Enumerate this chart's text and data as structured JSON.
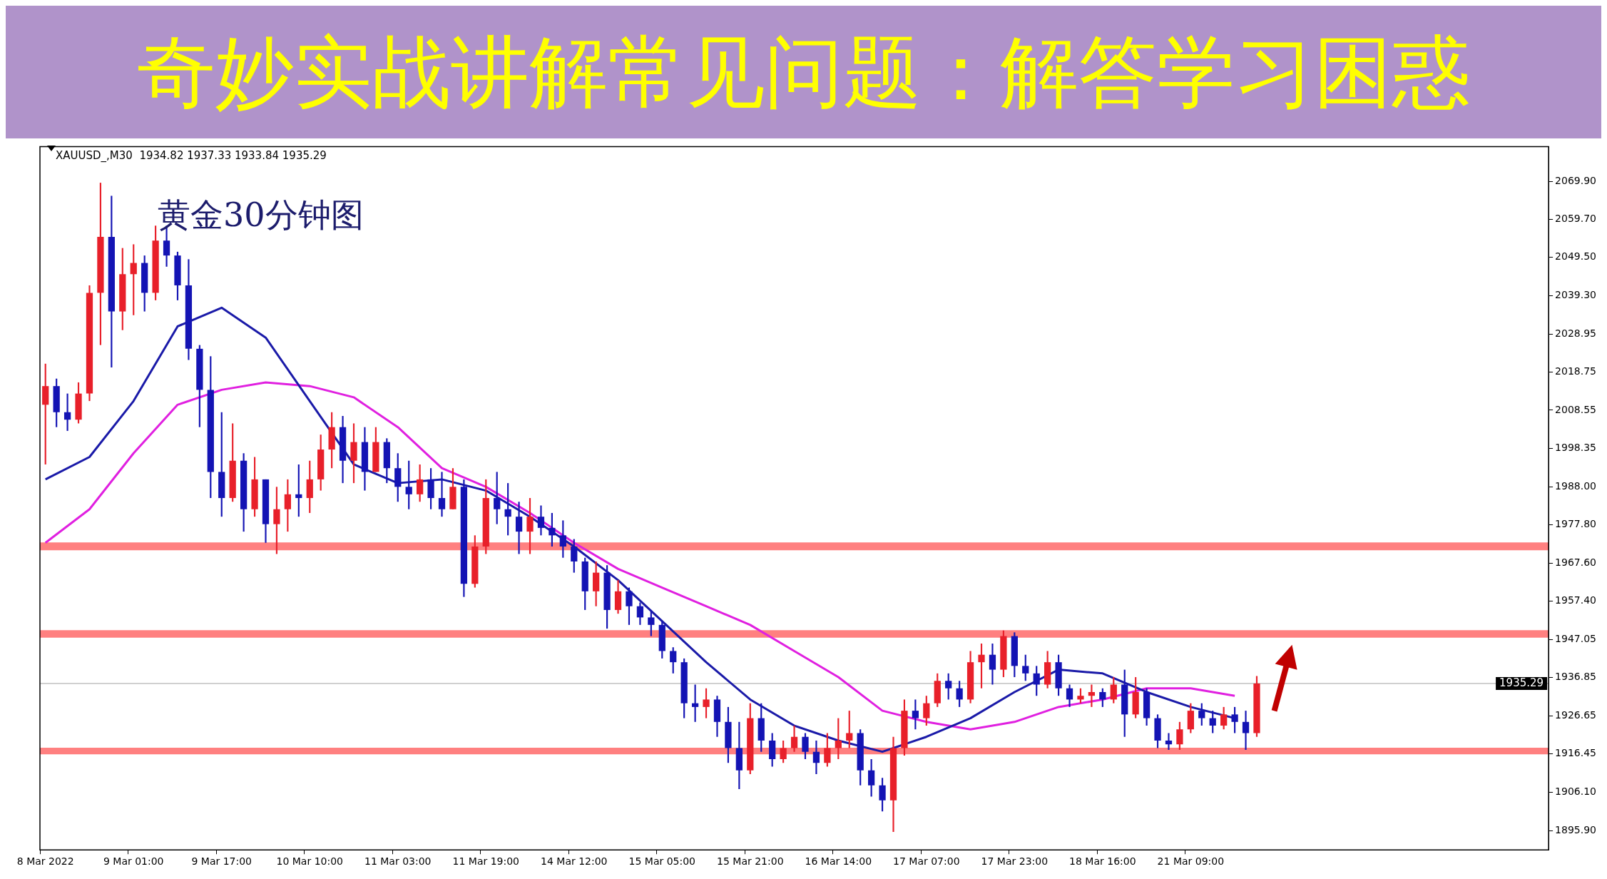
{
  "chart_data": {
    "type": "candlestick",
    "title": "黄金30分钟图",
    "subtitle": "奇妙实战讲解常见问题：解答学习困惑",
    "annotations": [
      "XAUUSD_,M30  1934.82 1937.33 1933.84 1935.29"
    ],
    "categories": [
      "8 Mar 2022",
      null,
      null,
      null,
      null,
      null,
      null,
      null,
      "9 Mar 01:00",
      null,
      null,
      null,
      null,
      null,
      null,
      null,
      "9 Mar 17:00",
      null,
      null,
      null,
      null,
      null,
      null,
      null,
      "10 Mar 10:00",
      null,
      null,
      null,
      null,
      null,
      null,
      null,
      "11 Mar 03:00",
      null,
      null,
      null,
      null,
      null,
      null,
      null,
      "11 Mar 19:00",
      null,
      null,
      null,
      null,
      null,
      null,
      null,
      "14 Mar 12:00",
      null,
      null,
      null,
      null,
      null,
      null,
      null,
      "15 Mar 05:00",
      null,
      null,
      null,
      null,
      null,
      null,
      null,
      "15 Mar 21:00",
      null,
      null,
      null,
      null,
      null,
      null,
      null,
      "16 Mar 14:00",
      null,
      null,
      null,
      null,
      null,
      null,
      null,
      "17 Mar 07:00",
      null,
      null,
      null,
      null,
      null,
      null,
      null,
      "17 Mar 23:00",
      null,
      null,
      null,
      null,
      null,
      null,
      null,
      "18 Mar 16:00",
      null,
      null,
      null,
      null,
      null,
      null,
      null,
      "21 Mar 09:00",
      null,
      null,
      null,
      null,
      null,
      null,
      null,
      null,
      null,
      null,
      null,
      null,
      null,
      null,
      null,
      null,
      null,
      null,
      null,
      null,
      null,
      null,
      null,
      null,
      null,
      null,
      null,
      null,
      null,
      null,
      null,
      null
    ],
    "ohlc": [
      [
        2010,
        2021,
        1994,
        2015
      ],
      [
        2015,
        2017,
        2004,
        2008
      ],
      [
        2008,
        2013,
        2003,
        2006
      ],
      [
        2006,
        2016,
        2005,
        2013
      ],
      [
        2013,
        2042,
        2011,
        2040
      ],
      [
        2040,
        2069.5,
        2026,
        2055
      ],
      [
        2055,
        2066,
        2020,
        2035
      ],
      [
        2035,
        2052,
        2030,
        2045
      ],
      [
        2045,
        2053,
        2034,
        2048
      ],
      [
        2048,
        2050,
        2035,
        2040
      ],
      [
        2040,
        2058,
        2038,
        2054
      ],
      [
        2054,
        2058,
        2047,
        2050
      ],
      [
        2050,
        2051,
        2038,
        2042
      ],
      [
        2042,
        2049,
        2022,
        2025
      ],
      [
        2025,
        2026,
        2004,
        2014
      ],
      [
        2014,
        2023,
        1985,
        1992
      ],
      [
        1992,
        2008,
        1980,
        1985
      ],
      [
        1985,
        2005,
        1984,
        1995
      ],
      [
        1995,
        1997,
        1976,
        1982
      ],
      [
        1982,
        1996,
        1980,
        1990
      ],
      [
        1990,
        1990,
        1973,
        1978
      ],
      [
        1978,
        1988,
        1970,
        1982
      ],
      [
        1982,
        1990,
        1976,
        1986
      ],
      [
        1986,
        1994,
        1980,
        1985
      ],
      [
        1985,
        1995,
        1981,
        1990
      ],
      [
        1990,
        2002,
        1987,
        1998
      ],
      [
        1998,
        2008,
        1993,
        2004
      ],
      [
        2004,
        2007,
        1989,
        1995
      ],
      [
        1995,
        2005,
        1989,
        2000
      ],
      [
        2000,
        2004,
        1987,
        1992
      ],
      [
        1992,
        2004,
        1992,
        2000
      ],
      [
        2000,
        2001,
        1989,
        1993
      ],
      [
        1993,
        1997,
        1984,
        1988
      ],
      [
        1988,
        1995,
        1982,
        1986
      ],
      [
        1986,
        1994,
        1984,
        1990
      ],
      [
        1990,
        1993,
        1982,
        1985
      ],
      [
        1985,
        1992,
        1980,
        1982
      ],
      [
        1982,
        1993,
        1982,
        1988
      ],
      [
        1988,
        1990,
        1958.5,
        1962
      ],
      [
        1962,
        1975,
        1961,
        1972
      ],
      [
        1972,
        1990,
        1970,
        1985
      ],
      [
        1985,
        1992,
        1978,
        1982
      ],
      [
        1982,
        1989,
        1975,
        1980
      ],
      [
        1980,
        1984,
        1970,
        1976
      ],
      [
        1976,
        1985,
        1970,
        1980
      ],
      [
        1980,
        1983,
        1975,
        1977
      ],
      [
        1977,
        1981,
        1972,
        1975
      ],
      [
        1975,
        1979,
        1969,
        1972
      ],
      [
        1972,
        1974,
        1965,
        1968
      ],
      [
        1968,
        1969,
        1955,
        1960
      ],
      [
        1960,
        1968,
        1956,
        1965
      ],
      [
        1965,
        1967,
        1950,
        1955
      ],
      [
        1955,
        1963,
        1954,
        1960
      ],
      [
        1960,
        1961,
        1951,
        1956
      ],
      [
        1956,
        1957,
        1951,
        1953
      ],
      [
        1953,
        1955,
        1948,
        1951
      ],
      [
        1951,
        1952,
        1942,
        1944
      ],
      [
        1944,
        1945,
        1938,
        1941
      ],
      [
        1941,
        1942,
        1926,
        1930
      ],
      [
        1930,
        1935,
        1925,
        1929
      ],
      [
        1929,
        1934,
        1926,
        1931
      ],
      [
        1931,
        1932,
        1921,
        1925
      ],
      [
        1925,
        1929,
        1914,
        1918
      ],
      [
        1918,
        1925,
        1907,
        1912
      ],
      [
        1912,
        1930,
        1911,
        1926
      ],
      [
        1926,
        1930,
        1917,
        1920
      ],
      [
        1920,
        1922,
        1913,
        1915
      ],
      [
        1915,
        1920,
        1914,
        1918
      ],
      [
        1918,
        1924,
        1917,
        1921
      ],
      [
        1921,
        1922,
        1915,
        1917
      ],
      [
        1917,
        1920,
        1911,
        1914
      ],
      [
        1914,
        1922,
        1913,
        1918
      ],
      [
        1918,
        1926,
        1915,
        1920
      ],
      [
        1920,
        1928,
        1918,
        1922
      ],
      [
        1922,
        1923,
        1908,
        1912
      ],
      [
        1912,
        1915,
        1905,
        1908
      ],
      [
        1908,
        1910,
        1901,
        1904
      ],
      [
        1904,
        1921,
        1895.5,
        1918
      ],
      [
        1918,
        1931,
        1916,
        1928
      ],
      [
        1928,
        1931,
        1923,
        1926
      ],
      [
        1926,
        1932,
        1924,
        1930
      ],
      [
        1930,
        1938,
        1929,
        1936
      ],
      [
        1936,
        1938,
        1931,
        1934
      ],
      [
        1934,
        1936,
        1929,
        1931
      ],
      [
        1931,
        1944,
        1930,
        1941
      ],
      [
        1941,
        1946,
        1934,
        1943
      ],
      [
        1943,
        1946,
        1935,
        1939
      ],
      [
        1939,
        1949.5,
        1937,
        1948
      ],
      [
        1948,
        1949,
        1937,
        1940
      ],
      [
        1940,
        1943,
        1936,
        1938
      ],
      [
        1938,
        1940,
        1932,
        1935
      ],
      [
        1935,
        1944,
        1934,
        1941
      ],
      [
        1941,
        1943,
        1932,
        1934
      ],
      [
        1934,
        1935,
        1929,
        1931
      ],
      [
        1931,
        1934,
        1930,
        1932
      ],
      [
        1932,
        1935,
        1929,
        1933
      ],
      [
        1933,
        1934,
        1929,
        1931
      ],
      [
        1931,
        1937,
        1930,
        1935
      ],
      [
        1935,
        1939,
        1921,
        1927
      ],
      [
        1927,
        1937,
        1926,
        1933
      ],
      [
        1933,
        1934,
        1924,
        1926
      ],
      [
        1926,
        1927,
        1918,
        1920
      ],
      [
        1920,
        1922,
        1917.5,
        1919
      ],
      [
        1919,
        1925,
        1917.5,
        1923
      ],
      [
        1923,
        1930,
        1922,
        1928
      ],
      [
        1928,
        1930,
        1924,
        1926
      ],
      [
        1926,
        1928,
        1922,
        1924
      ],
      [
        1924,
        1929,
        1923,
        1927
      ],
      [
        1927,
        1929,
        1922,
        1925
      ],
      [
        1925,
        1928,
        1917.5,
        1922
      ],
      [
        1922,
        1937.3,
        1921,
        1935.3
      ],
      null,
      null,
      null,
      null,
      null,
      null,
      null,
      null,
      null,
      null,
      null,
      null,
      null,
      null,
      null,
      null,
      null,
      null,
      null,
      null,
      null,
      null,
      null,
      null,
      null,
      null
    ],
    "colors": [
      "#e8202a",
      "#1414b4",
      "#1414b4",
      "#e8202a",
      "#e8202a",
      "#e8202a",
      "#1414b4",
      "#e8202a",
      "#e8202a",
      "#1414b4",
      "#e8202a",
      "#1414b4",
      "#1414b4",
      "#1414b4",
      "#1414b4",
      "#1414b4",
      "#1414b4",
      "#e8202a",
      "#1414b4",
      "#e8202a",
      "#1414b4",
      "#e8202a",
      "#e8202a",
      "#1414b4",
      "#e8202a",
      "#e8202a",
      "#e8202a",
      "#1414b4",
      "#e8202a",
      "#1414b4",
      "#e8202a",
      "#1414b4",
      "#1414b4",
      "#1414b4",
      "#e8202a",
      "#1414b4",
      "#1414b4",
      "#e8202a",
      "#1414b4",
      "#e8202a",
      "#e8202a",
      "#1414b4",
      "#1414b4",
      "#1414b4",
      "#e8202a",
      "#1414b4",
      "#1414b4",
      "#1414b4",
      "#1414b4",
      "#1414b4",
      "#e8202a",
      "#1414b4",
      "#e8202a",
      "#1414b4",
      "#1414b4",
      "#1414b4",
      "#1414b4",
      "#1414b4",
      "#1414b4",
      "#1414b4",
      "#e8202a",
      "#1414b4",
      "#1414b4",
      "#1414b4",
      "#e8202a",
      "#1414b4",
      "#1414b4",
      "#e8202a",
      "#e8202a",
      "#1414b4",
      "#1414b4",
      "#e8202a",
      "#e8202a",
      "#e8202a",
      "#1414b4",
      "#1414b4",
      "#1414b4",
      "#e8202a",
      "#e8202a",
      "#1414b4",
      "#e8202a",
      "#e8202a",
      "#1414b4",
      "#1414b4",
      "#e8202a",
      "#e8202a",
      "#1414b4",
      "#e8202a",
      "#1414b4",
      "#1414b4",
      "#1414b4",
      "#e8202a",
      "#1414b4",
      "#1414b4",
      "#e8202a",
      "#e8202a",
      "#1414b4",
      "#e8202a",
      "#1414b4",
      "#e8202a",
      "#1414b4",
      "#1414b4",
      "#1414b4",
      "#e8202a",
      "#e8202a",
      "#1414b4",
      "#1414b4",
      "#e8202a",
      "#1414b4",
      "#1414b4",
      "#e8202a",
      null,
      null,
      null,
      null,
      null,
      null,
      null,
      null,
      null,
      null,
      null,
      null,
      null,
      null,
      null,
      null,
      null,
      null,
      null,
      null,
      null,
      null,
      null,
      null,
      null,
      null
    ],
    "series": [
      {
        "type": "line",
        "color": "#1a1aa8",
        "values": [
          1990,
          null,
          null,
          null,
          1996,
          null,
          null,
          null,
          2011,
          null,
          null,
          null,
          2031,
          null,
          null,
          null,
          2036,
          null,
          null,
          null,
          2028,
          null,
          null,
          null,
          2011,
          null,
          null,
          null,
          1994,
          null,
          null,
          null,
          1989,
          null,
          null,
          null,
          1990,
          null,
          null,
          null,
          1987,
          null,
          null,
          null,
          1980,
          null,
          null,
          null,
          1972,
          null,
          null,
          null,
          1963,
          null,
          null,
          null,
          1952,
          null,
          null,
          null,
          1941,
          null,
          null,
          null,
          1931,
          null,
          null,
          null,
          1924,
          null,
          null,
          null,
          1920,
          null,
          null,
          null,
          1917,
          null,
          null,
          null,
          1921,
          null,
          null,
          null,
          1926,
          null,
          null,
          null,
          1933,
          null,
          null,
          null,
          1939,
          null,
          null,
          null,
          1938,
          null,
          null,
          null,
          1933,
          null,
          null,
          null,
          1929,
          null,
          null,
          null,
          1926,
          null,
          null,
          null,
          null,
          null,
          null,
          null,
          null,
          null,
          null,
          null,
          null,
          null,
          null,
          null,
          null,
          null,
          null,
          null,
          null,
          null,
          null,
          null,
          null,
          null,
          null,
          null,
          null
        ]
      },
      {
        "type": "line",
        "color": "#e020e0",
        "values": [
          1973,
          null,
          null,
          null,
          1982,
          null,
          null,
          null,
          1997,
          null,
          null,
          null,
          2010,
          null,
          null,
          null,
          2014,
          null,
          null,
          null,
          2016,
          null,
          null,
          null,
          2015,
          null,
          null,
          null,
          2012,
          null,
          null,
          null,
          2004,
          null,
          null,
          null,
          1993,
          null,
          null,
          null,
          1988,
          null,
          null,
          null,
          1981,
          null,
          null,
          null,
          1973,
          null,
          null,
          null,
          1966,
          null,
          null,
          null,
          1961,
          null,
          null,
          null,
          1956,
          null,
          null,
          null,
          1951,
          null,
          null,
          null,
          1944,
          null,
          null,
          null,
          1937,
          null,
          null,
          null,
          1928,
          null,
          null,
          null,
          1925,
          null,
          null,
          null,
          1923,
          null,
          null,
          null,
          1925,
          null,
          null,
          null,
          1929,
          null,
          null,
          null,
          1931,
          null,
          null,
          null,
          1934,
          null,
          null,
          null,
          1934,
          null,
          null,
          null,
          1932,
          null,
          null,
          null,
          null,
          null,
          null,
          null,
          null,
          null,
          null,
          null,
          null,
          null,
          null,
          null,
          null,
          null,
          null,
          null,
          null,
          null,
          null,
          null,
          null,
          null,
          null,
          null,
          null
        ]
      }
    ],
    "ylim": [
      1890.7,
      2079.2
    ],
    "yticks": [
      {
        "value": 1895.9,
        "label": "1895.90"
      },
      {
        "value": 1906.1,
        "label": "1906.10"
      },
      {
        "value": 1916.45,
        "label": "1916.45"
      },
      {
        "value": 1926.65,
        "label": "1926.65"
      },
      {
        "value": 1936.85,
        "label": "1936.85"
      },
      {
        "value": 1947.05,
        "label": "1947.05"
      },
      {
        "value": 1957.4,
        "label": "1957.40"
      },
      {
        "value": 1967.6,
        "label": "1967.60"
      },
      {
        "value": 1977.8,
        "label": "1977.80"
      },
      {
        "value": 1988,
        "label": "1988.00"
      },
      {
        "value": 1998.35,
        "label": "1998.35"
      },
      {
        "value": 2008.55,
        "label": "2008.55"
      },
      {
        "value": 2018.75,
        "label": "2018.75"
      },
      {
        "value": 2028.95,
        "label": "2028.95"
      },
      {
        "value": 2039.3,
        "label": "2039.30"
      },
      {
        "value": 2049.5,
        "label": "2049.50"
      },
      {
        "value": 2059.7,
        "label": "2059.70"
      },
      {
        "value": 2069.9,
        "label": "2069.90"
      }
    ],
    "bands": [
      {
        "axis": "y",
        "from": 1971,
        "to": 1973.1,
        "color": "#ff8080"
      },
      {
        "axis": "y",
        "from": 1947.6,
        "to": 1949.6,
        "color": "#ff8080"
      },
      {
        "axis": "y",
        "from": 1916.3,
        "to": 1918.1,
        "color": "#ff8080"
      }
    ],
    "ref_lines": [
      {
        "axis": "y",
        "value": 1935.29,
        "label": "1935.29",
        "color": "#c0c0c0"
      }
    ],
    "legend": false
  }
}
